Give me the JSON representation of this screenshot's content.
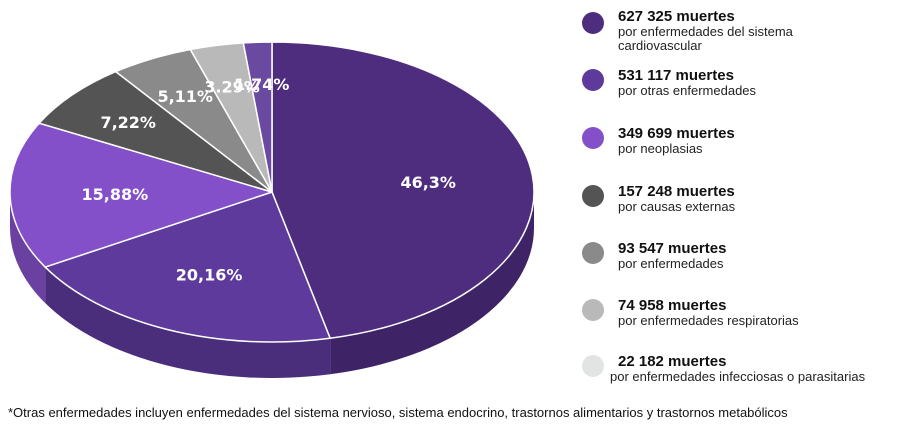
{
  "chart_data": {
    "type": "pie",
    "title": "",
    "slices": [
      {
        "label": "46,3%",
        "value": 46.3,
        "color": "#4e2d7f"
      },
      {
        "label": "20,16%",
        "value": 20.16,
        "color": "#5d3a9b"
      },
      {
        "label": "15,88%",
        "value": 15.88,
        "color": "#8450c9"
      },
      {
        "label": "7,22%",
        "value": 7.22,
        "color": "#545454"
      },
      {
        "label": "5,11%",
        "value": 5.11,
        "color": "#8a8a8a"
      },
      {
        "label": "3.29%",
        "value": 3.29,
        "color": "#b9b9b9"
      },
      {
        "label": "1.74%",
        "value": 1.74,
        "color": "#6a4aa0"
      }
    ],
    "legend": [
      {
        "value": "627 325  muertes",
        "desc": "por enfermedades del sistema cardiovascular",
        "color": "#4e2d7f"
      },
      {
        "value": "531 117 muertes",
        "desc": "por otras enfermedades",
        "color": "#5d3a9b"
      },
      {
        "value": "349 699 muertes",
        "desc": "por neoplasias",
        "color": "#8450c9"
      },
      {
        "value": "157 248 muertes",
        "desc": "por causas externas",
        "color": "#545454"
      },
      {
        "value": "93 547 muertes",
        "desc": "por enfermedades",
        "color": "#8a8a8a"
      },
      {
        "value": "74 958 muertes",
        "desc": "por enfermedades respiratorias",
        "color": "#b9b9b9"
      },
      {
        "value": "22 182 muertes",
        "desc": "por enfermedades infecciosas o parasitarias",
        "color": "#e2e4e4"
      }
    ],
    "legend_position": "right"
  },
  "footnote": "*Otras enfermedades incluyen enfermedades del sistema nervioso, sistema endocrino, trastornos alimentarios y trastornos metabólicos"
}
